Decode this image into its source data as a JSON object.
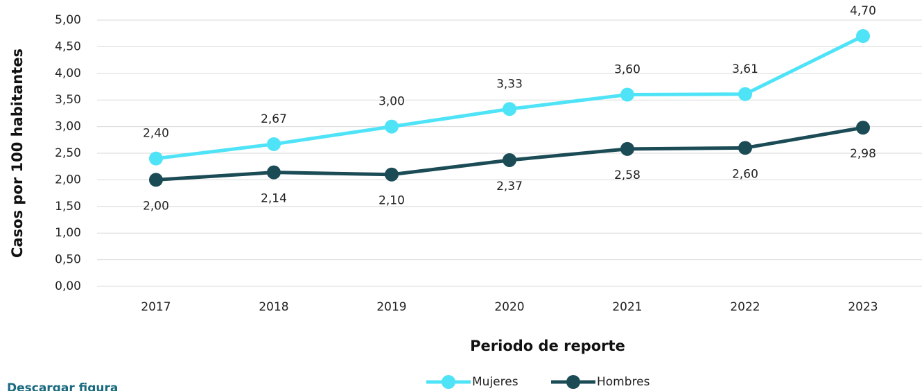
{
  "chart_data": {
    "type": "line",
    "x_label": "Periodo de reporte",
    "y_label": "Casos por 100 habitantes",
    "categories": [
      "2017",
      "2018",
      "2019",
      "2020",
      "2021",
      "2022",
      "2023"
    ],
    "series": [
      {
        "name": "Mujeres",
        "color": "#4fe3f7",
        "values": [
          2.4,
          2.67,
          3.0,
          3.33,
          3.6,
          3.61,
          4.7
        ],
        "value_labels": [
          "2,40",
          "2,67",
          "3,00",
          "3,33",
          "3,60",
          "3,61",
          "4,70"
        ]
      },
      {
        "name": "Hombres",
        "color": "#1b4b55",
        "values": [
          2.0,
          2.14,
          2.1,
          2.37,
          2.58,
          2.6,
          2.98
        ],
        "value_labels": [
          "2,00",
          "2,14",
          "2,10",
          "2,37",
          "2,58",
          "2,60",
          "2,98"
        ]
      }
    ],
    "ylim": [
      0,
      5
    ],
    "yticks": [
      {
        "value": 0,
        "label": "0,00"
      },
      {
        "value": 0.5,
        "label": "0,50"
      },
      {
        "value": 1,
        "label": "1,00"
      },
      {
        "value": 1.5,
        "label": "1,50"
      },
      {
        "value": 2,
        "label": "2,00"
      },
      {
        "value": 2.5,
        "label": "2,50"
      },
      {
        "value": 3,
        "label": "3,00"
      },
      {
        "value": 3.5,
        "label": "3,50"
      },
      {
        "value": 4,
        "label": "4,00"
      },
      {
        "value": 4.5,
        "label": "4,50"
      },
      {
        "value": 5,
        "label": "5,00"
      }
    ],
    "grid": true,
    "legend": "bottom",
    "link": "Descargar figura"
  }
}
